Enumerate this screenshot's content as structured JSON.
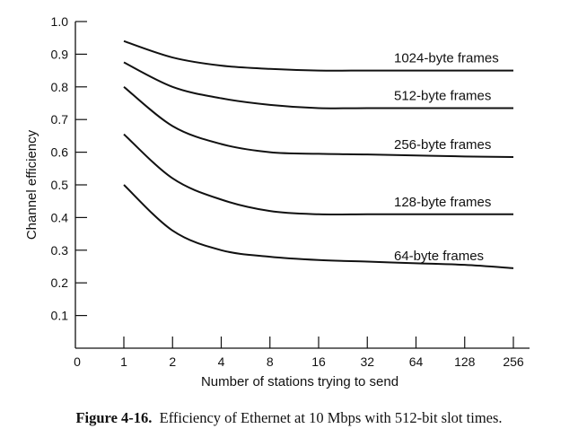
{
  "chart_data": {
    "type": "line",
    "title": "",
    "xlabel": "Number of stations trying to send",
    "ylabel": "Channel efficiency",
    "x_scale": "log2",
    "x_tick_labels": [
      "0",
      "1",
      "2",
      "4",
      "8",
      "16",
      "32",
      "64",
      "128",
      "256"
    ],
    "y_tick_labels": [
      "0.1",
      "0.2",
      "0.3",
      "0.4",
      "0.5",
      "0.6",
      "0.7",
      "0.8",
      "0.9",
      "1.0"
    ],
    "ylim": [
      0,
      1.0
    ],
    "xlim": [
      1,
      256
    ],
    "grid": false,
    "x": [
      1,
      2,
      4,
      8,
      16,
      32,
      64,
      128,
      256
    ],
    "series": [
      {
        "name": "1024-byte frames",
        "values": [
          0.94,
          0.89,
          0.865,
          0.855,
          0.85,
          0.85,
          0.85,
          0.85,
          0.85
        ]
      },
      {
        "name": "512-byte frames",
        "values": [
          0.875,
          0.8,
          0.765,
          0.745,
          0.735,
          0.735,
          0.735,
          0.735,
          0.735
        ]
      },
      {
        "name": "256-byte frames",
        "values": [
          0.8,
          0.68,
          0.625,
          0.6,
          0.595,
          0.593,
          0.59,
          0.587,
          0.585
        ]
      },
      {
        "name": "128-byte frames",
        "values": [
          0.655,
          0.52,
          0.455,
          0.42,
          0.41,
          0.41,
          0.41,
          0.41,
          0.41
        ]
      },
      {
        "name": "64-byte frames",
        "values": [
          0.5,
          0.36,
          0.3,
          0.28,
          0.27,
          0.265,
          0.26,
          0.255,
          0.245
        ]
      }
    ]
  },
  "caption": {
    "label": "Figure 4-16.",
    "text": "Efficiency of Ethernet at 10 Mbps with 512-bit slot times."
  }
}
